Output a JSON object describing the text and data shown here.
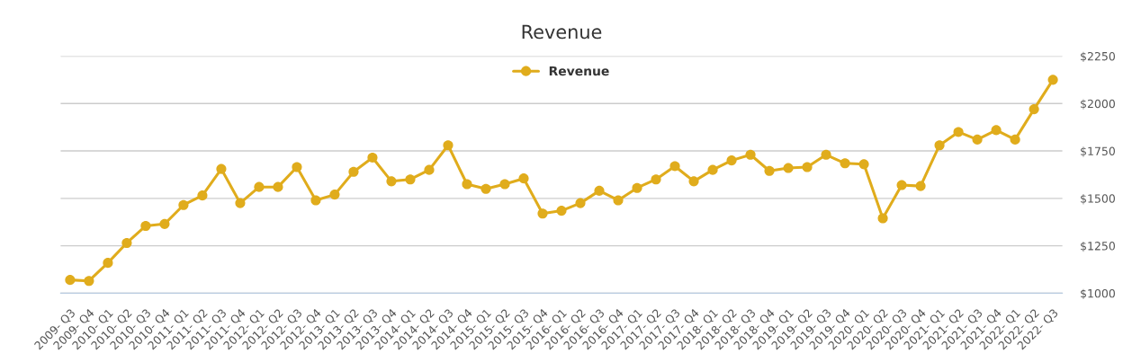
{
  "chart_data": {
    "type": "line",
    "title": "Revenue",
    "categories": [
      "2009- Q3",
      "2009- Q4",
      "2010- Q1",
      "2010- Q2",
      "2010- Q3",
      "2010- Q4",
      "2011- Q1",
      "2011- Q2",
      "2011- Q3",
      "2011- Q4",
      "2012- Q1",
      "2012- Q2",
      "2012- Q3",
      "2012- Q4",
      "2013- Q1",
      "2013- Q2",
      "2013- Q3",
      "2013- Q4",
      "2014- Q1",
      "2014- Q2",
      "2014- Q3",
      "2014- Q4",
      "2015- Q1",
      "2015- Q2",
      "2015- Q3",
      "2015- Q4",
      "2016- Q1",
      "2016- Q2",
      "2016- Q3",
      "2016- Q4",
      "2017- Q1",
      "2017- Q2",
      "2017- Q3",
      "2017- Q4",
      "2018- Q1",
      "2018- Q2",
      "2018- Q3",
      "2018- Q4",
      "2019- Q1",
      "2019- Q2",
      "2019- Q3",
      "2019- Q4",
      "2020- Q1",
      "2020- Q2",
      "2020- Q3",
      "2020- Q4",
      "2021- Q1",
      "2021- Q2",
      "2021- Q3",
      "2021- Q4",
      "2022- Q1",
      "2022- Q2",
      "2022- Q3"
    ],
    "series": [
      {
        "name": "Revenue",
        "color": "#e0ac1c",
        "values": [
          1070,
          1065,
          1160,
          1265,
          1355,
          1365,
          1465,
          1515,
          1655,
          1475,
          1560,
          1560,
          1665,
          1490,
          1520,
          1640,
          1715,
          1590,
          1600,
          1650,
          1780,
          1575,
          1550,
          1575,
          1605,
          1420,
          1435,
          1475,
          1540,
          1490,
          1555,
          1600,
          1670,
          1590,
          1650,
          1700,
          1730,
          1645,
          1660,
          1665,
          1730,
          1685,
          1680,
          1395,
          1570,
          1565,
          1780,
          1850,
          1810,
          1860,
          1810,
          1970,
          2125
        ]
      }
    ],
    "ylim": [
      1000,
      2250
    ],
    "yticks": [
      {
        "value": 1000,
        "label": "$1000"
      },
      {
        "value": 1250,
        "label": "$1250"
      },
      {
        "value": 1500,
        "label": "$1500"
      },
      {
        "value": 1750,
        "label": "$1750"
      },
      {
        "value": 2000,
        "label": "$2000"
      },
      {
        "value": 2250,
        "label": "$2250"
      }
    ],
    "grid": "y",
    "legend": "top",
    "marker": "circle",
    "line_style": "solid"
  }
}
